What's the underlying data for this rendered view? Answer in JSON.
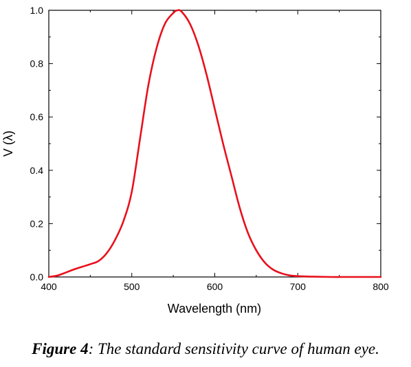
{
  "chart_data": {
    "type": "line",
    "xlabel": "Wavelength (nm)",
    "ylabel": "V (λ)",
    "xlim": [
      400,
      800
    ],
    "ylim": [
      0,
      1.0
    ],
    "xticks": [
      400,
      500,
      600,
      700,
      800
    ],
    "yticks": [
      0.0,
      0.2,
      0.4,
      0.6,
      0.8,
      1.0
    ],
    "grid": false,
    "series": [
      {
        "color": "#e8101c",
        "x": [
          400,
          410,
          420,
          430,
          440,
          450,
          460,
          470,
          480,
          490,
          500,
          510,
          520,
          530,
          540,
          550,
          555,
          560,
          570,
          580,
          590,
          600,
          610,
          620,
          630,
          640,
          650,
          660,
          670,
          680,
          690,
          700,
          720,
          740,
          760,
          780,
          800
        ],
        "y": [
          0.0,
          0.005,
          0.016,
          0.028,
          0.038,
          0.048,
          0.06,
          0.09,
          0.14,
          0.21,
          0.32,
          0.52,
          0.72,
          0.86,
          0.95,
          0.99,
          1.0,
          0.995,
          0.95,
          0.87,
          0.76,
          0.63,
          0.5,
          0.38,
          0.26,
          0.165,
          0.1,
          0.055,
          0.028,
          0.014,
          0.006,
          0.003,
          0.001,
          0.0,
          0.0,
          0.0,
          0.0
        ]
      }
    ]
  },
  "caption": {
    "label": "Figure 4",
    "text": ": The standard sensitivity curve of human eye."
  }
}
